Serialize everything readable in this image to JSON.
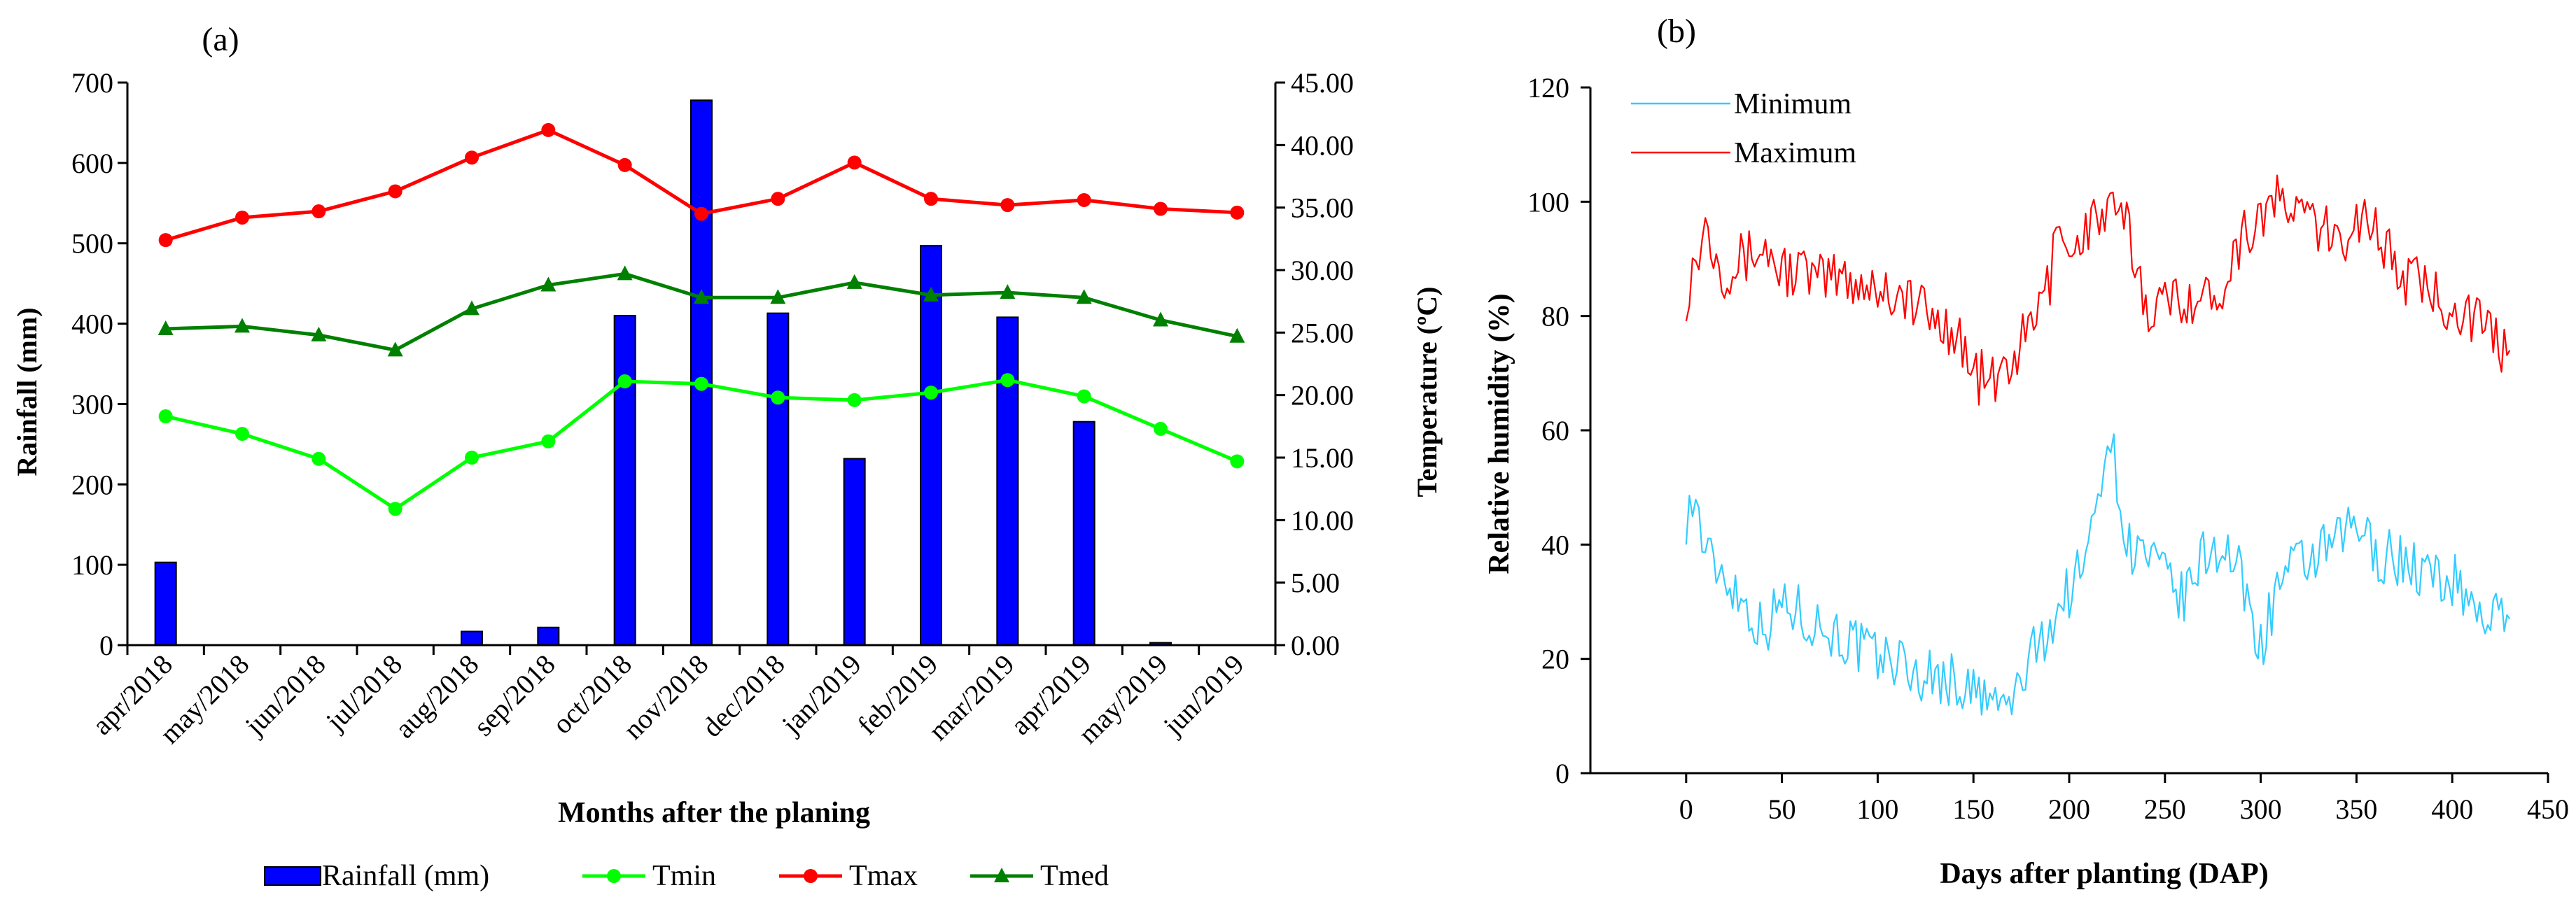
{
  "panel_a": {
    "label": "(a)",
    "chart_data": {
      "type": "bar+line",
      "categories": [
        "apr/2018",
        "may/2018",
        "jun/2018",
        "jul/2018",
        "aug/2018",
        "sep/2018",
        "oct/2018",
        "nov/2018",
        "dec/2018",
        "jan/2019",
        "feb/2019",
        "mar/2019",
        "apr/2019",
        "may/2019",
        "jun/2019"
      ],
      "xlabel": "Months after the planing",
      "ylabel_left": "Rainfall (mm)",
      "ylabel_right": "Temperature (ºC)",
      "ylim_left": [
        0,
        700
      ],
      "yticks_left": [
        "0",
        "100",
        "200",
        "300",
        "400",
        "500",
        "600",
        "700"
      ],
      "ylim_right": [
        0,
        45
      ],
      "yticks_right": [
        "0.00",
        "5.00",
        "10.00",
        "15.00",
        "20.00",
        "25.00",
        "30.00",
        "35.00",
        "40.00",
        "45.00"
      ],
      "bar_series": {
        "name": "Rainfall (mm)",
        "color": "#0000ff",
        "values": [
          103,
          0,
          0,
          0,
          17,
          22,
          410,
          678,
          413,
          232,
          497,
          408,
          278,
          3,
          0
        ]
      },
      "line_series": [
        {
          "name": "Tmin",
          "color": "#00ff00",
          "marker": "circle",
          "values": [
            18.3,
            16.9,
            14.9,
            10.9,
            15.0,
            16.3,
            21.1,
            20.9,
            19.8,
            19.6,
            20.2,
            21.2,
            19.9,
            17.3,
            14.7
          ]
        },
        {
          "name": "Tmax",
          "color": "#ff0000",
          "marker": "circle",
          "values": [
            32.4,
            34.2,
            34.7,
            36.3,
            39.0,
            41.2,
            38.4,
            34.5,
            35.7,
            38.6,
            35.7,
            35.2,
            35.6,
            34.9,
            34.6
          ]
        },
        {
          "name": "Tmed",
          "color": "#008000",
          "marker": "triangle",
          "values": [
            25.3,
            25.5,
            24.8,
            23.6,
            26.9,
            28.8,
            29.7,
            27.8,
            27.8,
            29.0,
            28.0,
            28.2,
            27.8,
            26.0,
            24.7
          ]
        }
      ]
    }
  },
  "panel_b": {
    "label": "(b)",
    "chart_data": {
      "type": "line",
      "xlabel": "Days after planting (DAP)",
      "ylabel": "Relative humidity (%)",
      "xlim": [
        -50,
        450
      ],
      "xticks": [
        "0",
        "50",
        "100",
        "150",
        "200",
        "250",
        "300",
        "350",
        "400",
        "450"
      ],
      "ylim": [
        0,
        120
      ],
      "yticks": [
        "0",
        "20",
        "40",
        "60",
        "80",
        "100",
        "120"
      ],
      "series": [
        {
          "name": "Minimum",
          "color": "#33ccff",
          "x": [
            0,
            5,
            10,
            20,
            30,
            40,
            50,
            60,
            70,
            80,
            90,
            100,
            110,
            120,
            130,
            140,
            150,
            160,
            170,
            180,
            190,
            200,
            210,
            215,
            220,
            225,
            230,
            240,
            250,
            260,
            270,
            280,
            290,
            300,
            310,
            320,
            330,
            340,
            350,
            360,
            370,
            380,
            390,
            400,
            410,
            420,
            430
          ],
          "values": [
            45,
            48,
            38,
            35,
            30,
            25,
            30,
            28,
            26,
            24,
            22,
            20,
            20,
            17,
            17,
            16,
            14,
            12,
            12,
            20,
            26,
            32,
            38,
            50,
            60,
            52,
            40,
            38,
            34,
            30,
            38,
            40,
            34,
            22,
            34,
            36,
            38,
            40,
            44,
            38,
            38,
            36,
            34,
            34,
            30,
            27,
            27
          ]
        },
        {
          "name": "Maximum",
          "color": "#ff0000",
          "x": [
            0,
            5,
            10,
            20,
            30,
            40,
            50,
            60,
            70,
            80,
            90,
            100,
            110,
            120,
            130,
            140,
            150,
            160,
            170,
            180,
            190,
            195,
            200,
            210,
            220,
            230,
            240,
            250,
            260,
            270,
            280,
            290,
            300,
            310,
            320,
            330,
            340,
            350,
            360,
            370,
            380,
            390,
            400,
            410,
            420,
            430
          ],
          "values": [
            84,
            90,
            96,
            88,
            90,
            92,
            88,
            88,
            86,
            87,
            86,
            85,
            84,
            82,
            79,
            78,
            70,
            68,
            72,
            78,
            86,
            100,
            90,
            96,
            98,
            96,
            82,
            82,
            84,
            82,
            86,
            94,
            98,
            100,
            98,
            96,
            92,
            98,
            96,
            88,
            86,
            84,
            82,
            80,
            76,
            74
          ]
        }
      ],
      "legend": "top-left"
    }
  }
}
